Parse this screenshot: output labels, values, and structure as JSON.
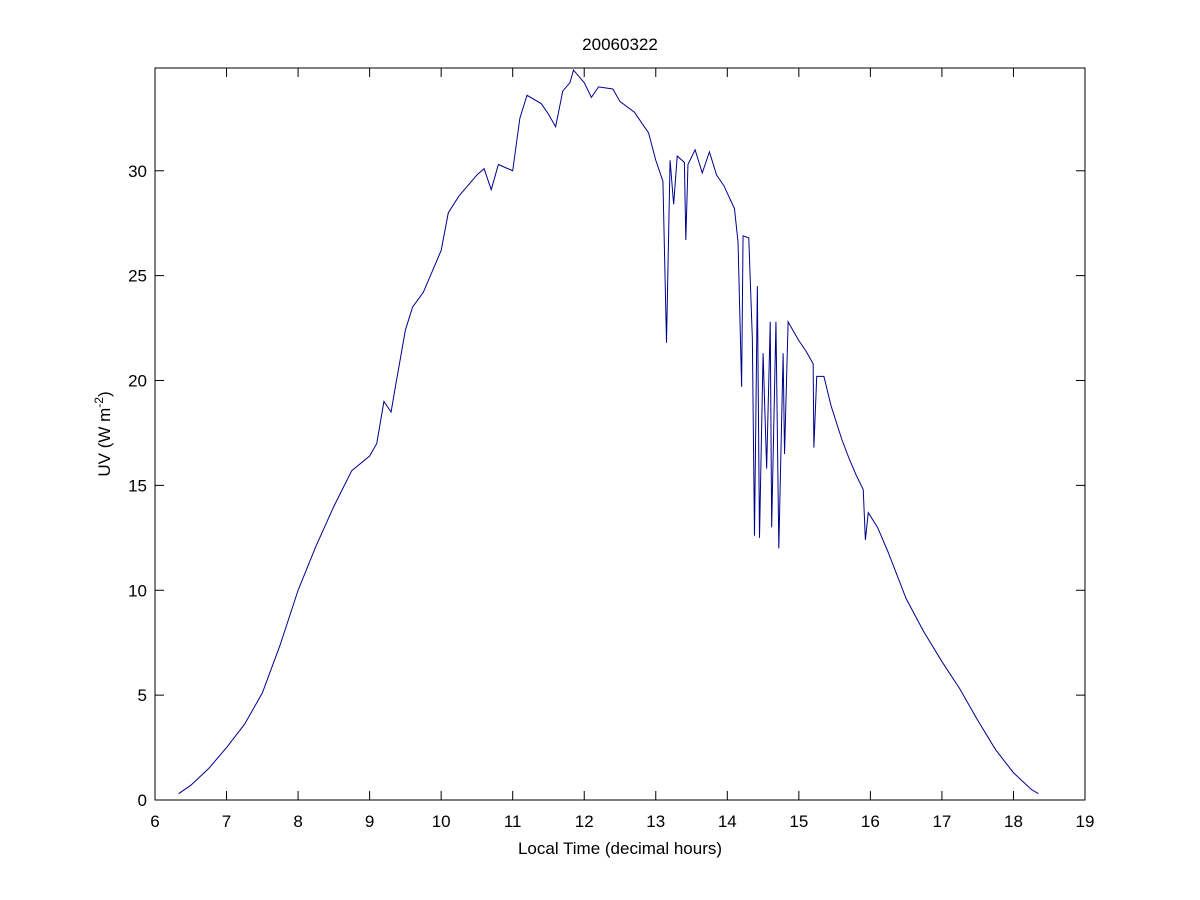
{
  "chart_data": {
    "type": "line",
    "title": "20060322",
    "xlabel": "Local Time (decimal hours)",
    "ylabel": {
      "text": "UV (W m",
      "superscript": "-2",
      "suffix": ")"
    },
    "xlim": [
      6,
      19
    ],
    "xticks": [
      6,
      7,
      8,
      9,
      10,
      11,
      12,
      13,
      14,
      15,
      16,
      17,
      18,
      19
    ],
    "ylim": [
      0,
      34.9
    ],
    "yticks": [
      0,
      5,
      10,
      15,
      20,
      25,
      30
    ],
    "grid": false,
    "series": [
      {
        "color": "#00008b",
        "x": [
          6.33,
          6.5,
          6.75,
          7,
          7.25,
          7.5,
          7.75,
          8,
          8.25,
          8.5,
          8.75,
          9,
          9.1,
          9.2,
          9.3,
          9.35,
          9.5,
          9.6,
          9.75,
          10,
          10.1,
          10.25,
          10.5,
          10.6,
          10.7,
          10.8,
          11,
          11.1,
          11.2,
          11.4,
          11.5,
          11.6,
          11.7,
          11.8,
          11.85,
          12,
          12.1,
          12.2,
          12.4,
          12.5,
          12.7,
          12.9,
          13,
          13.1,
          13.15,
          13.2,
          13.25,
          13.3,
          13.4,
          13.42,
          13.45,
          13.55,
          13.65,
          13.75,
          13.85,
          13.95,
          14.1,
          14.15,
          14.2,
          14.22,
          14.3,
          14.35,
          14.38,
          14.42,
          14.45,
          14.5,
          14.55,
          14.6,
          14.62,
          14.68,
          14.72,
          14.78,
          14.8,
          14.85,
          14.9,
          15,
          15.1,
          15.2,
          15.21,
          15.25,
          15.35,
          15.45,
          15.6,
          15.7,
          15.8,
          15.9,
          15.93,
          15.97,
          16.1,
          16.25,
          16.5,
          16.75,
          17,
          17.25,
          17.5,
          17.75,
          18,
          18.25,
          18.35
        ],
        "values": [
          0.3,
          0.7,
          1.5,
          2.5,
          3.6,
          5.1,
          7.4,
          10,
          12.1,
          14,
          15.7,
          16.4,
          17,
          19,
          18.5,
          19.5,
          22.4,
          23.5,
          24.2,
          26.2,
          28,
          28.8,
          29.8,
          30.1,
          29.1,
          30.3,
          30,
          32.5,
          33.6,
          33.2,
          32.7,
          32.1,
          33.8,
          34.2,
          34.8,
          34.2,
          33.5,
          34,
          33.9,
          33.3,
          32.8,
          31.8,
          30.5,
          29.5,
          21.8,
          30.5,
          28.4,
          30.7,
          30.4,
          26.7,
          30.3,
          31,
          29.9,
          30.9,
          29.8,
          29.3,
          28.2,
          26.6,
          19.7,
          26.9,
          26.8,
          22,
          12.6,
          24.5,
          12.5,
          21.3,
          15.8,
          22.8,
          13,
          22.8,
          12,
          21.3,
          16.5,
          22.8,
          22.5,
          21.9,
          21.4,
          20.8,
          16.8,
          20.2,
          20.2,
          18.8,
          17.2,
          16.3,
          15.5,
          14.8,
          12.4,
          13.7,
          13,
          11.8,
          9.6,
          8,
          6.6,
          5.3,
          3.8,
          2.4,
          1.3,
          0.5,
          0.3
        ]
      }
    ]
  }
}
